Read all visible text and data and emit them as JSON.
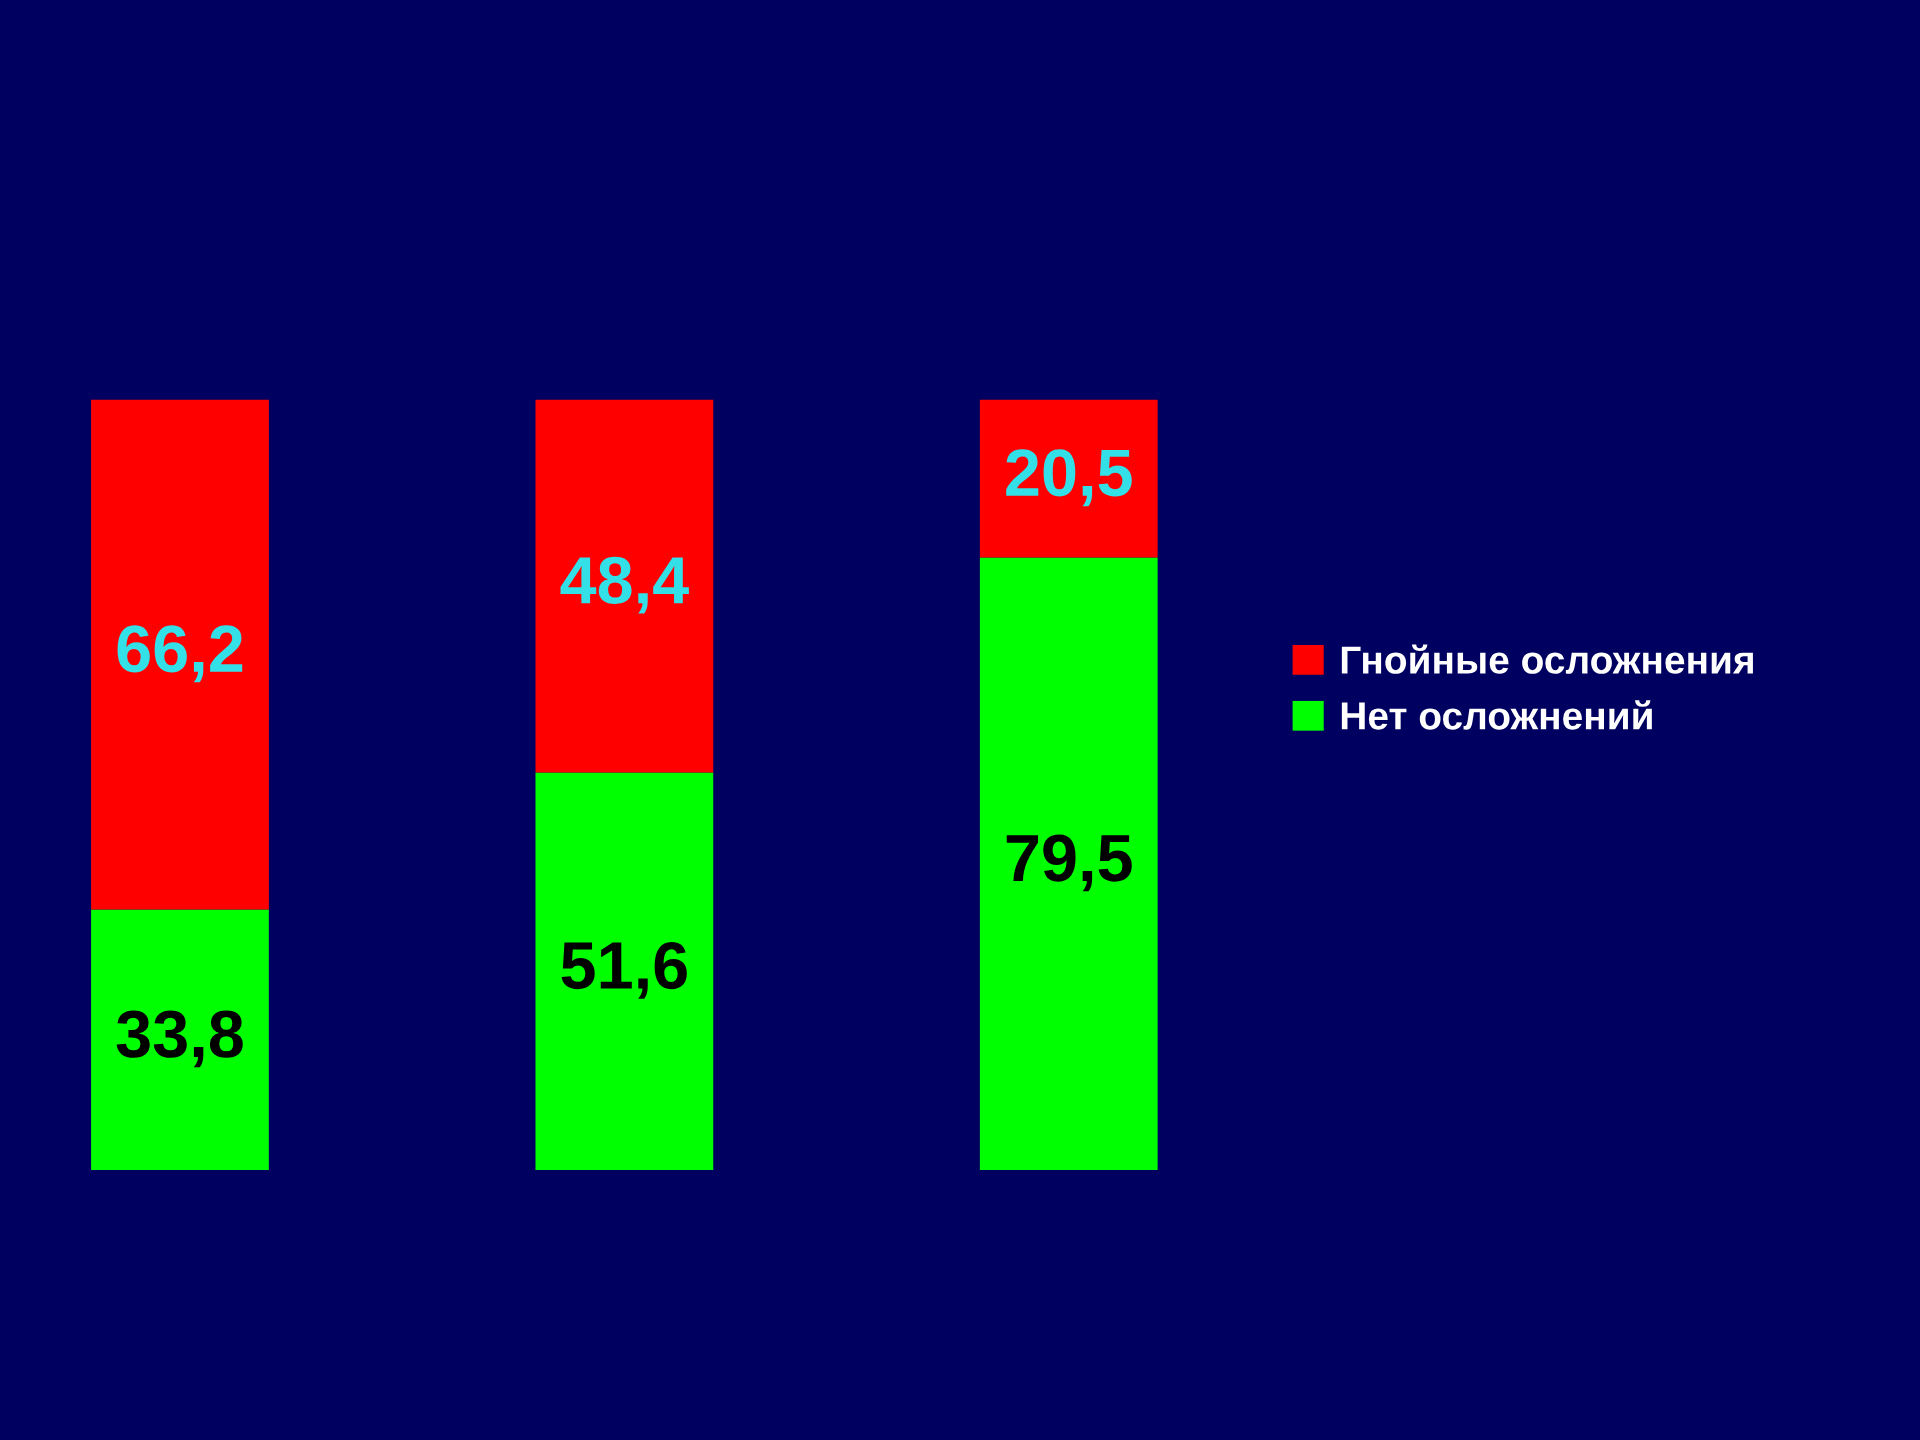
{
  "chart_data": {
    "type": "bar",
    "stacked": true,
    "categories": [
      null,
      null,
      null
    ],
    "legend": "right",
    "grid": false,
    "series": [
      {
        "name": "Нет осложнений",
        "color": "#00ff00",
        "values": [
          33.8,
          51.6,
          79.5
        ],
        "value_labels": [
          "33,8",
          "51,6",
          "79,5"
        ]
      },
      {
        "name": "Гнойные осложнения",
        "color": "#ff0000",
        "values": [
          66.2,
          48.4,
          20.5
        ],
        "value_labels": [
          "66,2",
          "48,4",
          "20,5"
        ]
      }
    ]
  }
}
